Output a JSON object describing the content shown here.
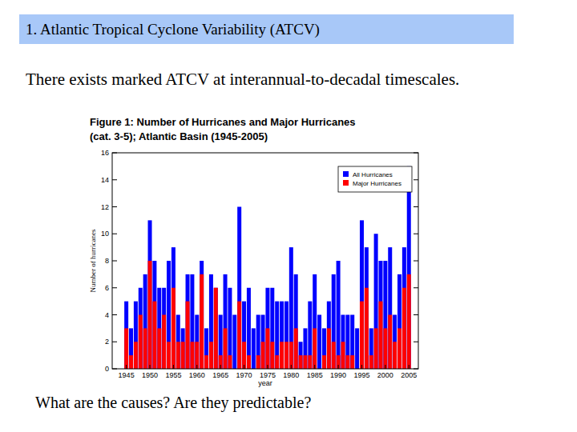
{
  "slide": {
    "title": "1. Atlantic Tropical Cyclone Variability (ATCV)",
    "text": "There exists marked ATCV at interannual-to-decadal timescales.",
    "question": "What are the causes?  Are they predictable?"
  },
  "chart_data": {
    "type": "bar",
    "title": [
      "Figure 1: Number of Hurricanes and Major Hurricanes",
      "(cat. 3-5); Atlantic Basin (1945-2005)"
    ],
    "x_label": "year",
    "y_label": "Number of hurricanes",
    "x": [
      1945,
      1946,
      1947,
      1948,
      1949,
      1950,
      1951,
      1952,
      1953,
      1954,
      1955,
      1956,
      1957,
      1958,
      1959,
      1960,
      1961,
      1962,
      1963,
      1964,
      1965,
      1966,
      1967,
      1968,
      1969,
      1970,
      1971,
      1972,
      1973,
      1974,
      1975,
      1976,
      1977,
      1978,
      1979,
      1980,
      1981,
      1982,
      1983,
      1984,
      1985,
      1986,
      1987,
      1988,
      1989,
      1990,
      1991,
      1992,
      1993,
      1994,
      1995,
      1996,
      1997,
      1998,
      1999,
      2000,
      2001,
      2002,
      2003,
      2004,
      2005
    ],
    "series": [
      {
        "name": "All Hurricanes",
        "color": "#0000ff",
        "values": [
          5,
          3,
          5,
          6,
          7,
          11,
          8,
          6,
          6,
          8,
          9,
          4,
          3,
          7,
          7,
          4,
          8,
          3,
          7,
          6,
          4,
          7,
          6,
          4,
          12,
          5,
          6,
          3,
          4,
          4,
          6,
          6,
          5,
          5,
          5,
          9,
          7,
          2,
          3,
          5,
          7,
          4,
          3,
          5,
          7,
          8,
          4,
          4,
          4,
          3,
          11,
          9,
          3,
          10,
          8,
          8,
          9,
          4,
          7,
          9,
          15
        ]
      },
      {
        "name": "Major Hurricanes",
        "color": "#ff0000",
        "values": [
          3,
          1,
          2,
          4,
          3,
          8,
          5,
          3,
          4,
          2,
          6,
          2,
          2,
          5,
          2,
          2,
          7,
          1,
          2,
          6,
          1,
          3,
          1,
          0,
          5,
          2,
          1,
          0,
          1,
          2,
          3,
          2,
          1,
          2,
          2,
          2,
          3,
          1,
          1,
          1,
          3,
          0,
          1,
          3,
          2,
          1,
          2,
          1,
          1,
          0,
          5,
          6,
          1,
          3,
          5,
          3,
          4,
          2,
          3,
          6,
          7
        ]
      }
    ],
    "stacked": false,
    "xlim": [
      1942,
      2007
    ],
    "xticks": [
      1945,
      1950,
      1955,
      1960,
      1965,
      1970,
      1975,
      1980,
      1985,
      1990,
      1995,
      2000,
      2005
    ],
    "ylim": [
      0,
      16
    ],
    "yticks": [
      0,
      2,
      4,
      6,
      8,
      10,
      12,
      14,
      16
    ],
    "legend": "top-right",
    "grid": false
  }
}
